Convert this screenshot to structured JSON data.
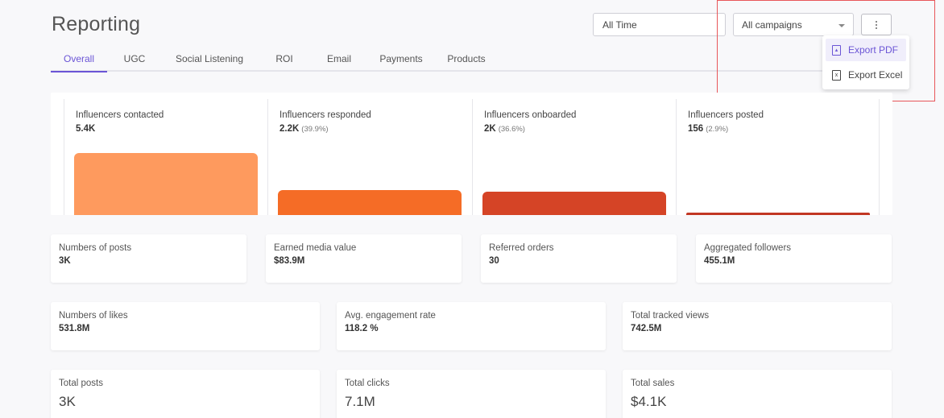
{
  "header": {
    "title": "Reporting"
  },
  "tabs": [
    {
      "label": "Overall",
      "active": true
    },
    {
      "label": "UGC"
    },
    {
      "label": "Social Listening"
    },
    {
      "label": "ROI"
    },
    {
      "label": "Email"
    },
    {
      "label": "Payments"
    },
    {
      "label": "Products"
    }
  ],
  "filters": {
    "date_range": "All Time",
    "campaign": "All campaigns"
  },
  "export_menu": {
    "pdf_label": "Export PDF",
    "excel_label": "Export Excel",
    "pdf_icon": "pdf-file-icon",
    "excel_icon": "excel-file-icon"
  },
  "funnel": [
    {
      "label": "Influencers contacted",
      "value": "5.4K",
      "pct": "",
      "count": 5400,
      "color": "#fe9a5e"
    },
    {
      "label": "Influencers responded",
      "value": "2.2K",
      "pct": "(39.9%)",
      "count": 2200,
      "color": "#f56c26"
    },
    {
      "label": "Influencers onboarded",
      "value": "2K",
      "pct": "(36.6%)",
      "count": 2000,
      "color": "#d54426"
    },
    {
      "label": "Influencers posted",
      "value": "156",
      "pct": "(2.9%)",
      "count": 156,
      "color": "#c23723"
    }
  ],
  "stats_row1": [
    {
      "label": "Numbers of posts",
      "value": "3K"
    },
    {
      "label": "Earned media value",
      "value": "$83.9M"
    },
    {
      "label": "Referred orders",
      "value": "30"
    },
    {
      "label": "Aggregated followers",
      "value": "455.1M"
    }
  ],
  "stats_row2": [
    {
      "label": "Numbers of likes",
      "value": "531.8M"
    },
    {
      "label": "Avg. engagement rate",
      "value": "118.2 %"
    },
    {
      "label": "Total tracked views",
      "value": "742.5M"
    }
  ],
  "stats_row3": [
    {
      "label": "Total posts",
      "value": "3K"
    },
    {
      "label": "Total clicks",
      "value": "7.1M"
    },
    {
      "label": "Total sales",
      "value": "$4.1K"
    }
  ],
  "colors": {
    "accent": "#6b55d6",
    "highlight": "#e8565a"
  }
}
